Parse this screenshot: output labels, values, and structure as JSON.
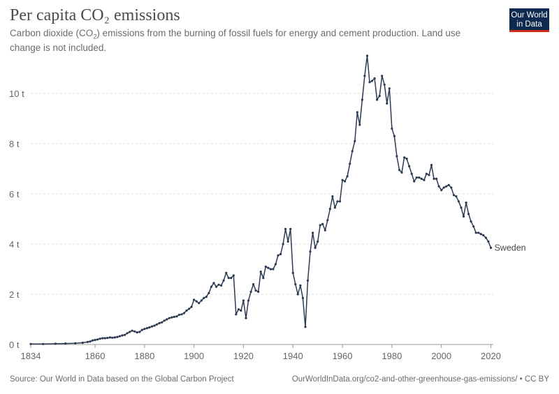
{
  "header": {
    "title": "Per capita CO₂ emissions",
    "subtitle_pre": "Carbon dioxide (CO",
    "subtitle_sub": "2",
    "subtitle_post": ") emissions from the burning of fossil fuels for energy and cement production. Land use change is not included."
  },
  "logo": {
    "line1": "Our World",
    "line2": "in Data"
  },
  "footer": {
    "source": "Source: Our World in Data based on the Global Carbon Project",
    "url": "OurWorldInData.org/co2-and-other-greenhouse-gas-emissions/ • CC BY"
  },
  "colors": {
    "line": "#2d3b52",
    "grid": "#dddddd",
    "logo_bg": "#0e2a4f",
    "logo_accent": "#d42b21"
  },
  "chart_data": {
    "type": "line",
    "title": "Per capita CO₂ emissions",
    "xlim": [
      1834,
      2021
    ],
    "ylim": [
      0,
      11.5
    ],
    "x_ticks": [
      1834,
      1860,
      1880,
      1900,
      1920,
      1940,
      1960,
      1980,
      2000,
      2020
    ],
    "y_ticks": [
      0,
      2,
      4,
      6,
      8,
      10
    ],
    "y_tick_labels": [
      "0 t",
      "2 t",
      "4 t",
      "6 t",
      "8 t",
      "10 t"
    ],
    "grid": "horizontal dashed",
    "series": [
      {
        "name": "Sweden",
        "points": [
          [
            1834,
            0.02
          ],
          [
            1839,
            0.02
          ],
          [
            1844,
            0.03
          ],
          [
            1848,
            0.04
          ],
          [
            1852,
            0.05
          ],
          [
            1855,
            0.07
          ],
          [
            1857,
            0.1
          ],
          [
            1858,
            0.12
          ],
          [
            1859,
            0.16
          ],
          [
            1860,
            0.18
          ],
          [
            1861,
            0.2
          ],
          [
            1862,
            0.23
          ],
          [
            1863,
            0.25
          ],
          [
            1864,
            0.25
          ],
          [
            1865,
            0.26
          ],
          [
            1866,
            0.28
          ],
          [
            1867,
            0.27
          ],
          [
            1868,
            0.28
          ],
          [
            1869,
            0.3
          ],
          [
            1870,
            0.33
          ],
          [
            1871,
            0.36
          ],
          [
            1872,
            0.38
          ],
          [
            1873,
            0.45
          ],
          [
            1874,
            0.5
          ],
          [
            1875,
            0.55
          ],
          [
            1876,
            0.52
          ],
          [
            1877,
            0.48
          ],
          [
            1878,
            0.5
          ],
          [
            1879,
            0.58
          ],
          [
            1880,
            0.62
          ],
          [
            1881,
            0.65
          ],
          [
            1882,
            0.68
          ],
          [
            1883,
            0.72
          ],
          [
            1884,
            0.75
          ],
          [
            1885,
            0.8
          ],
          [
            1886,
            0.85
          ],
          [
            1887,
            0.88
          ],
          [
            1888,
            0.95
          ],
          [
            1889,
            1.0
          ],
          [
            1890,
            1.05
          ],
          [
            1891,
            1.08
          ],
          [
            1892,
            1.1
          ],
          [
            1893,
            1.12
          ],
          [
            1894,
            1.18
          ],
          [
            1895,
            1.2
          ],
          [
            1896,
            1.25
          ],
          [
            1897,
            1.35
          ],
          [
            1898,
            1.42
          ],
          [
            1899,
            1.5
          ],
          [
            1900,
            1.78
          ],
          [
            1901,
            1.72
          ],
          [
            1902,
            1.65
          ],
          [
            1903,
            1.75
          ],
          [
            1904,
            1.85
          ],
          [
            1905,
            1.9
          ],
          [
            1906,
            2.05
          ],
          [
            1907,
            2.3
          ],
          [
            1908,
            2.45
          ],
          [
            1909,
            2.3
          ],
          [
            1910,
            2.38
          ],
          [
            1911,
            2.35
          ],
          [
            1912,
            2.55
          ],
          [
            1913,
            2.85
          ],
          [
            1914,
            2.65
          ],
          [
            1915,
            2.65
          ],
          [
            1916,
            2.75
          ],
          [
            1917,
            1.2
          ],
          [
            1918,
            1.4
          ],
          [
            1919,
            1.35
          ],
          [
            1920,
            1.75
          ],
          [
            1921,
            1.05
          ],
          [
            1922,
            1.75
          ],
          [
            1923,
            2.1
          ],
          [
            1924,
            2.4
          ],
          [
            1925,
            2.15
          ],
          [
            1926,
            2.1
          ],
          [
            1927,
            2.9
          ],
          [
            1928,
            2.65
          ],
          [
            1929,
            3.1
          ],
          [
            1930,
            3.05
          ],
          [
            1931,
            3.0
          ],
          [
            1932,
            3.0
          ],
          [
            1933,
            3.2
          ],
          [
            1934,
            3.55
          ],
          [
            1935,
            3.6
          ],
          [
            1936,
            4.0
          ],
          [
            1937,
            4.6
          ],
          [
            1938,
            4.1
          ],
          [
            1939,
            4.6
          ],
          [
            1940,
            2.85
          ],
          [
            1941,
            2.4
          ],
          [
            1942,
            2.0
          ],
          [
            1943,
            2.35
          ],
          [
            1944,
            1.85
          ],
          [
            1945,
            0.7
          ],
          [
            1946,
            2.55
          ],
          [
            1947,
            3.7
          ],
          [
            1948,
            4.45
          ],
          [
            1949,
            3.85
          ],
          [
            1950,
            4.1
          ],
          [
            1951,
            4.75
          ],
          [
            1952,
            4.8
          ],
          [
            1953,
            4.55
          ],
          [
            1954,
            4.95
          ],
          [
            1955,
            5.4
          ],
          [
            1956,
            5.9
          ],
          [
            1957,
            5.45
          ],
          [
            1958,
            5.7
          ],
          [
            1959,
            5.7
          ],
          [
            1960,
            6.55
          ],
          [
            1961,
            6.5
          ],
          [
            1962,
            6.7
          ],
          [
            1963,
            7.2
          ],
          [
            1964,
            7.7
          ],
          [
            1965,
            8.1
          ],
          [
            1966,
            9.25
          ],
          [
            1967,
            8.75
          ],
          [
            1968,
            9.75
          ],
          [
            1969,
            10.7
          ],
          [
            1970,
            11.5
          ],
          [
            1971,
            10.45
          ],
          [
            1972,
            10.5
          ],
          [
            1973,
            10.6
          ],
          [
            1974,
            9.75
          ],
          [
            1975,
            9.9
          ],
          [
            1976,
            10.7
          ],
          [
            1977,
            10.35
          ],
          [
            1978,
            9.6
          ],
          [
            1979,
            10.2
          ],
          [
            1980,
            8.6
          ],
          [
            1981,
            8.3
          ],
          [
            1982,
            7.5
          ],
          [
            1983,
            6.95
          ],
          [
            1984,
            6.85
          ],
          [
            1985,
            7.45
          ],
          [
            1986,
            7.4
          ],
          [
            1987,
            7.1
          ],
          [
            1988,
            6.8
          ],
          [
            1989,
            6.5
          ],
          [
            1990,
            6.65
          ],
          [
            1991,
            6.65
          ],
          [
            1992,
            6.6
          ],
          [
            1993,
            6.55
          ],
          [
            1994,
            6.8
          ],
          [
            1995,
            6.75
          ],
          [
            1996,
            7.15
          ],
          [
            1997,
            6.6
          ],
          [
            1998,
            6.6
          ],
          [
            1999,
            6.3
          ],
          [
            2000,
            6.15
          ],
          [
            2001,
            6.25
          ],
          [
            2002,
            6.3
          ],
          [
            2003,
            6.35
          ],
          [
            2004,
            6.25
          ],
          [
            2005,
            5.95
          ],
          [
            2006,
            5.9
          ],
          [
            2007,
            5.7
          ],
          [
            2008,
            5.45
          ],
          [
            2009,
            5.1
          ],
          [
            2010,
            5.65
          ],
          [
            2011,
            5.2
          ],
          [
            2012,
            4.9
          ],
          [
            2013,
            4.7
          ],
          [
            2014,
            4.45
          ],
          [
            2015,
            4.45
          ],
          [
            2016,
            4.4
          ],
          [
            2017,
            4.35
          ],
          [
            2018,
            4.25
          ],
          [
            2019,
            4.1
          ],
          [
            2020,
            3.85
          ]
        ]
      }
    ]
  }
}
